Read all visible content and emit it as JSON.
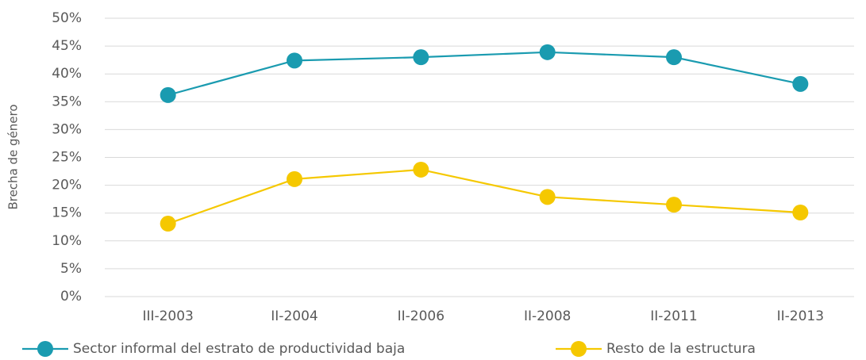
{
  "chart_data": {
    "type": "line",
    "y_label": "Brecha de género",
    "categories": [
      "III-2003",
      "II-2004",
      "II-2006",
      "II-2008",
      "II-2011",
      "II-2013"
    ],
    "series": [
      {
        "name": "Sector informal del estrato de productividad baja",
        "color": "#1a9bb0",
        "values": [
          36.2,
          42.4,
          43.0,
          43.9,
          43.0,
          38.2
        ]
      },
      {
        "name": "Resto de la estructura",
        "color": "#f5c800",
        "values": [
          13.1,
          21.1,
          22.8,
          17.9,
          16.5,
          15.1
        ]
      }
    ],
    "ylim": [
      0,
      50
    ],
    "yticks": [
      {
        "value": 0,
        "label": "0%"
      },
      {
        "value": 5,
        "label": "5%"
      },
      {
        "value": 10,
        "label": "10%"
      },
      {
        "value": 15,
        "label": "15%"
      },
      {
        "value": 20,
        "label": "20%"
      },
      {
        "value": 25,
        "label": "25%"
      },
      {
        "value": 30,
        "label": "30%"
      },
      {
        "value": 35,
        "label": "35%"
      },
      {
        "value": 40,
        "label": "40%"
      },
      {
        "value": 45,
        "label": "45%"
      },
      {
        "value": 50,
        "label": "50%"
      }
    ],
    "grid": true,
    "legend": "bottom"
  }
}
